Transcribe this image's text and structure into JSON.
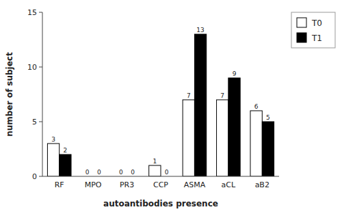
{
  "chart_data": {
    "type": "bar",
    "categories": [
      "RF",
      "MPO",
      "PR3",
      "CCP",
      "ASMA",
      "aCL",
      "aB2"
    ],
    "series": [
      {
        "name": "T0",
        "color": "#ffffff",
        "values": [
          3,
          0,
          0,
          1,
          7,
          7,
          6
        ]
      },
      {
        "name": "T1",
        "color": "#000000",
        "values": [
          2,
          0,
          0,
          0,
          13,
          9,
          5
        ]
      }
    ],
    "xlabel": "autoantibodies presence",
    "ylabel": "number of subject",
    "ylim": [
      0,
      15
    ],
    "yticks": [
      0,
      5,
      10,
      15
    ],
    "data_labels": true,
    "legend": "upper right",
    "grid": false
  }
}
